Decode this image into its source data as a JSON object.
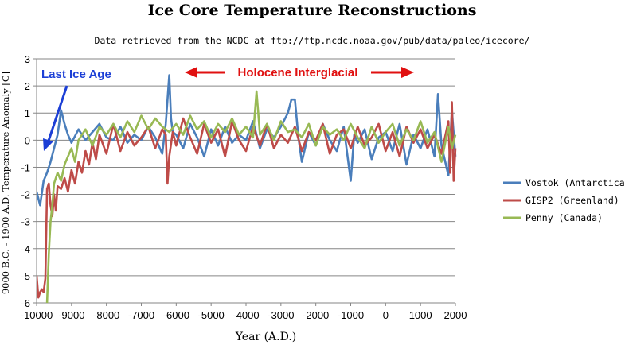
{
  "chart_data": {
    "type": "line",
    "title": "Ice Core Temperature Reconstructions",
    "subtitle": "Data retrieved from the NCDC at ftp://ftp.ncdc.noaa.gov/pub/data/paleo/icecore/",
    "xlabel": "Year (A.D.)",
    "ylabel": "9000 B.C. - 1900 A.D. Temperature Anomaly [C]",
    "xlim": [
      -10000,
      2000
    ],
    "ylim": [
      -6,
      3
    ],
    "xticks": [
      -10000,
      -9000,
      -8000,
      -7000,
      -6000,
      -5000,
      -4000,
      -3000,
      -2000,
      -1000,
      0,
      1000,
      2000
    ],
    "yticks": [
      3,
      2,
      1,
      0,
      -1,
      -2,
      -3,
      -4,
      -5,
      -6
    ],
    "legend_position": "right",
    "annotations": {
      "last_ice_age": "Last Ice Age",
      "holocene": "Holocene Interglacial"
    },
    "series": [
      {
        "name": "Vostok (Antarctica)",
        "color": "#4a7ebb",
        "x": [
          -10000,
          -9900,
          -9800,
          -9700,
          -9600,
          -9500,
          -9400,
          -9300,
          -9200,
          -9100,
          -9000,
          -8800,
          -8600,
          -8400,
          -8200,
          -8000,
          -7800,
          -7600,
          -7400,
          -7200,
          -7000,
          -6800,
          -6600,
          -6400,
          -6300,
          -6200,
          -6150,
          -6100,
          -6000,
          -5800,
          -5600,
          -5400,
          -5200,
          -5000,
          -4800,
          -4600,
          -4400,
          -4200,
          -4000,
          -3800,
          -3600,
          -3400,
          -3200,
          -3000,
          -2800,
          -2700,
          -2600,
          -2500,
          -2400,
          -2200,
          -2000,
          -1800,
          -1600,
          -1400,
          -1200,
          -1000,
          -900,
          -800,
          -600,
          -400,
          -200,
          0,
          200,
          400,
          600,
          800,
          1000,
          1200,
          1400,
          1500,
          1600,
          1800,
          1900,
          2000
        ],
        "values": [
          -1.9,
          -2.4,
          -1.5,
          -1.2,
          -0.8,
          -0.3,
          0.2,
          1.1,
          0.6,
          0.2,
          -0.1,
          0.4,
          0.0,
          0.3,
          0.6,
          0.1,
          0.0,
          0.5,
          -0.1,
          0.2,
          0.0,
          0.5,
          0.1,
          -0.5,
          0.6,
          2.4,
          0.8,
          0.3,
          0.2,
          -0.3,
          0.6,
          0.1,
          -0.6,
          0.4,
          -0.2,
          0.5,
          -0.1,
          0.2,
          0.0,
          0.7,
          -0.3,
          0.4,
          0.1,
          0.5,
          1.0,
          1.5,
          1.5,
          0.1,
          -0.8,
          0.3,
          -0.2,
          0.6,
          0.0,
          -0.4,
          0.5,
          -1.5,
          0.2,
          -0.1,
          0.4,
          -0.7,
          0.1,
          0.3,
          -0.4,
          0.6,
          -0.9,
          0.2,
          -0.3,
          0.4,
          -0.6,
          1.7,
          -0.2,
          -1.3,
          1.1,
          -0.6
        ]
      },
      {
        "name": "GISP2 (Greenland)",
        "color": "#be4b48",
        "x": [
          -10000,
          -9950,
          -9900,
          -9850,
          -9800,
          -9750,
          -9700,
          -9650,
          -9600,
          -9550,
          -9500,
          -9450,
          -9400,
          -9300,
          -9200,
          -9100,
          -9000,
          -8900,
          -8800,
          -8700,
          -8600,
          -8500,
          -8400,
          -8300,
          -8200,
          -8000,
          -7800,
          -7600,
          -7400,
          -7200,
          -7000,
          -6800,
          -6600,
          -6400,
          -6300,
          -6250,
          -6200,
          -6100,
          -6000,
          -5800,
          -5600,
          -5400,
          -5200,
          -5000,
          -4800,
          -4600,
          -4400,
          -4200,
          -4000,
          -3800,
          -3600,
          -3400,
          -3200,
          -3000,
          -2800,
          -2600,
          -2400,
          -2200,
          -2000,
          -1800,
          -1600,
          -1400,
          -1200,
          -1000,
          -800,
          -600,
          -400,
          -200,
          0,
          200,
          400,
          600,
          800,
          1000,
          1200,
          1400,
          1600,
          1800,
          1850,
          1900,
          1950,
          2000
        ],
        "values": [
          -5.0,
          -5.8,
          -5.6,
          -5.5,
          -5.6,
          -5.1,
          -1.8,
          -1.6,
          -2.4,
          -2.8,
          -2.0,
          -2.6,
          -1.7,
          -1.8,
          -1.4,
          -1.9,
          -1.1,
          -1.6,
          -0.8,
          -1.2,
          -0.4,
          -0.9,
          -0.1,
          -0.7,
          0.2,
          -0.5,
          0.6,
          -0.4,
          0.3,
          -0.2,
          0.1,
          0.5,
          -0.3,
          0.4,
          0.2,
          -1.6,
          -0.6,
          0.3,
          -0.2,
          0.8,
          0.1,
          -0.5,
          0.6,
          -0.1,
          0.4,
          -0.6,
          0.7,
          0.0,
          -0.4,
          0.5,
          -0.2,
          0.6,
          -0.3,
          0.2,
          -0.1,
          0.5,
          -0.4,
          0.3,
          0.0,
          0.6,
          -0.5,
          0.2,
          0.4,
          -0.3,
          0.5,
          -0.2,
          0.1,
          0.6,
          -0.4,
          0.3,
          -0.6,
          0.5,
          -0.1,
          0.4,
          -0.3,
          0.2,
          -0.5,
          0.7,
          -1.2,
          1.4,
          -1.5,
          -0.3
        ]
      },
      {
        "name": "Penny (Canada)",
        "color": "#98b954",
        "x": [
          -9700,
          -9650,
          -9600,
          -9550,
          -9500,
          -9400,
          -9300,
          -9200,
          -9100,
          -9000,
          -8900,
          -8800,
          -8600,
          -8400,
          -8200,
          -8000,
          -7800,
          -7600,
          -7400,
          -7200,
          -7000,
          -6800,
          -6600,
          -6400,
          -6200,
          -6000,
          -5800,
          -5600,
          -5400,
          -5200,
          -5000,
          -4800,
          -4600,
          -4400,
          -4200,
          -4000,
          -3800,
          -3700,
          -3600,
          -3400,
          -3200,
          -3000,
          -2800,
          -2600,
          -2400,
          -2200,
          -2000,
          -1800,
          -1600,
          -1400,
          -1200,
          -1000,
          -800,
          -600,
          -400,
          -200,
          0,
          200,
          400,
          600,
          800,
          1000,
          1200,
          1400,
          1600,
          1800,
          1900,
          2000
        ],
        "values": [
          -6.0,
          -4.2,
          -3.0,
          -2.4,
          -1.6,
          -1.2,
          -1.5,
          -0.9,
          -0.6,
          -0.3,
          -0.8,
          0.0,
          0.4,
          -0.2,
          0.5,
          0.2,
          0.6,
          0.1,
          0.7,
          0.3,
          0.9,
          0.4,
          0.8,
          0.5,
          0.3,
          0.6,
          0.2,
          0.9,
          0.4,
          0.7,
          0.1,
          0.6,
          0.3,
          0.8,
          0.2,
          0.5,
          0.1,
          1.8,
          0.2,
          0.6,
          0.0,
          0.7,
          0.3,
          0.4,
          0.1,
          0.6,
          -0.2,
          0.5,
          0.2,
          0.4,
          0.0,
          0.6,
          0.1,
          -0.3,
          0.5,
          -0.1,
          0.3,
          0.6,
          -0.2,
          0.4,
          0.0,
          0.7,
          -0.1,
          0.3,
          -0.8,
          0.5,
          -0.3,
          0.2
        ]
      }
    ]
  },
  "colors": {
    "annotation_blue": "#1c3fd6",
    "annotation_red": "#e01010",
    "grid": "#868686",
    "axis": "#868686"
  }
}
